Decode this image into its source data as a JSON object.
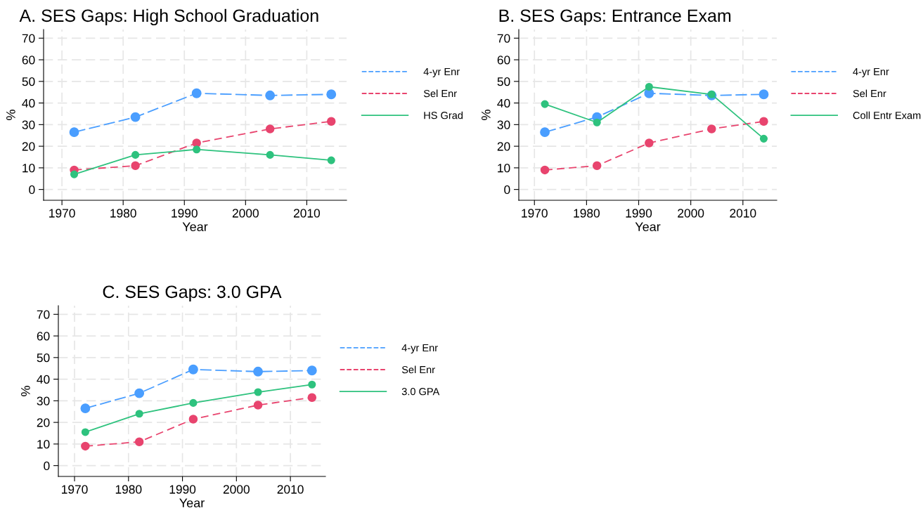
{
  "chart_data": [
    {
      "type": "line",
      "title": "A. SES Gaps: High School Graduation",
      "xlabel": "Year",
      "ylabel": "%",
      "x": [
        1972,
        1982,
        1992,
        2004,
        2014
      ],
      "xlim": [
        1967,
        2016.5
      ],
      "ylim": [
        -5,
        74
      ],
      "xticks": [
        1970,
        1980,
        1990,
        2000,
        2010
      ],
      "yticks": [
        0,
        10,
        20,
        30,
        40,
        50,
        60,
        70
      ],
      "grid": true,
      "legend": "right",
      "marker": "circle",
      "series": [
        {
          "name": "4-yr Enr",
          "color": "#4a9eff",
          "line_style": "dashed",
          "values": [
            26.5,
            33.5,
            44.5,
            43.5,
            44
          ]
        },
        {
          "name": "Sel Enr",
          "color": "#e8446e",
          "line_style": "dashed",
          "values": [
            9,
            11,
            21.5,
            28,
            31.5
          ]
        },
        {
          "name": "HS Grad",
          "color": "#2ec27e",
          "line_style": "solid",
          "values": [
            7,
            16,
            18.5,
            16,
            13.5
          ]
        }
      ]
    },
    {
      "type": "line",
      "title": "B. SES Gaps: Entrance Exam",
      "xlabel": "Year",
      "ylabel": "%",
      "x": [
        1972,
        1982,
        1992,
        2004,
        2014
      ],
      "xlim": [
        1967,
        2016.5
      ],
      "ylim": [
        -5,
        74
      ],
      "xticks": [
        1970,
        1980,
        1990,
        2000,
        2010
      ],
      "yticks": [
        0,
        10,
        20,
        30,
        40,
        50,
        60,
        70
      ],
      "grid": true,
      "legend": "right",
      "marker": "circle",
      "series": [
        {
          "name": "4-yr Enr",
          "color": "#4a9eff",
          "line_style": "dashed",
          "values": [
            26.5,
            33.5,
            44.5,
            43.5,
            44
          ]
        },
        {
          "name": "Sel Enr",
          "color": "#e8446e",
          "line_style": "dashed",
          "values": [
            9,
            11,
            21.5,
            28,
            31.5
          ]
        },
        {
          "name": "Coll Entr Exam",
          "color": "#2ec27e",
          "line_style": "solid",
          "values": [
            39.5,
            31,
            47.5,
            44,
            23.5
          ]
        }
      ]
    },
    {
      "type": "line",
      "title": "C. SES Gaps: 3.0 GPA",
      "xlabel": "Year",
      "ylabel": "%",
      "x": [
        1972,
        1982,
        1992,
        2004,
        2014
      ],
      "xlim": [
        1967,
        2016.5
      ],
      "ylim": [
        -5,
        74
      ],
      "xticks": [
        1970,
        1980,
        1990,
        2000,
        2010
      ],
      "yticks": [
        0,
        10,
        20,
        30,
        40,
        50,
        60,
        70
      ],
      "grid": true,
      "legend": "right",
      "marker": "circle",
      "series": [
        {
          "name": "4-yr Enr",
          "color": "#4a9eff",
          "line_style": "dashed",
          "values": [
            26.5,
            33.5,
            44.5,
            43.5,
            44
          ]
        },
        {
          "name": "Sel Enr",
          "color": "#e8446e",
          "line_style": "dashed",
          "values": [
            9,
            11,
            21.5,
            28,
            31.5
          ]
        },
        {
          "name": "3.0 GPA",
          "color": "#2ec27e",
          "line_style": "solid",
          "values": [
            15.5,
            24,
            29,
            34,
            37.5
          ]
        }
      ]
    }
  ]
}
